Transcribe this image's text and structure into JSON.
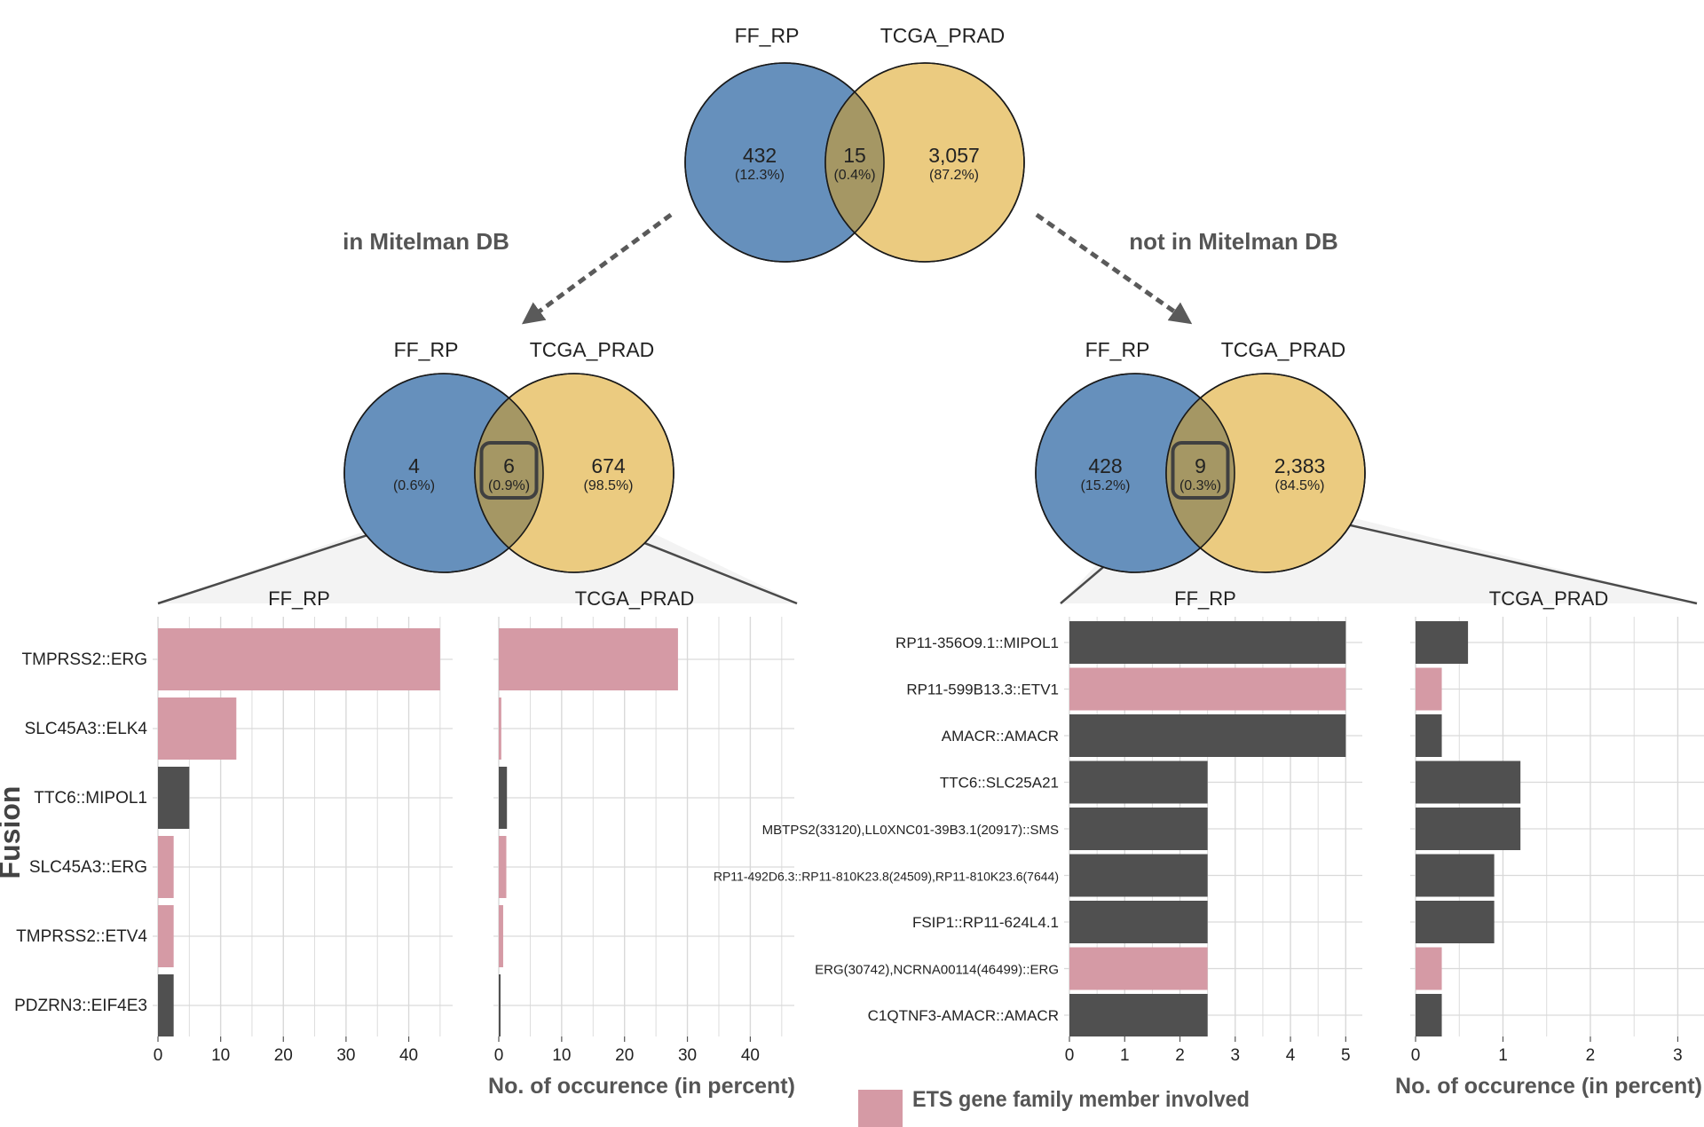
{
  "colors": {
    "blue": "#6690bc",
    "gold": "#ebcb80",
    "overlap": "#a59764",
    "pink": "#d59aa5",
    "dark": "#505050",
    "grid": "#d9d9d9",
    "text": "#222222",
    "arrow": "#5a5a5a"
  },
  "arrows": {
    "left_label": "in Mitelman DB",
    "right_label": "not in Mitelman DB"
  },
  "venns": {
    "top": {
      "left_title": "FF_RP",
      "right_title": "TCGA_PRAD",
      "left_count": "432",
      "left_pct": "(12.3%)",
      "mid_count": "15",
      "mid_pct": "(0.4%)",
      "right_count": "3,057",
      "right_pct": "(87.2%)"
    },
    "left": {
      "left_title": "FF_RP",
      "right_title": "TCGA_PRAD",
      "left_count": "4",
      "left_pct": "(0.6%)",
      "mid_count": "6",
      "mid_pct": "(0.9%)",
      "right_count": "674",
      "right_pct": "(98.5%)"
    },
    "right": {
      "left_title": "FF_RP",
      "right_title": "TCGA_PRAD",
      "left_count": "428",
      "left_pct": "(15.2%)",
      "mid_count": "9",
      "mid_pct": "(0.3%)",
      "right_count": "2,383",
      "right_pct": "(84.5%)"
    }
  },
  "y_axis_title": "Fusion",
  "legend": {
    "label": "ETS gene family member involved",
    "color": "#d59aa5"
  },
  "chart_data": [
    {
      "type": "bar",
      "orientation": "horizontal",
      "title": "FF_RP",
      "categories": [
        "TMPRSS2::ERG",
        "SLC45A3::ELK4",
        "TTC6::MIPOL1",
        "SLC45A3::ERG",
        "TMPRSS2::ETV4",
        "PDZRN3::EIF4E3"
      ],
      "values": [
        45,
        12.5,
        5,
        2.5,
        2.5,
        2.5
      ],
      "ets": [
        true,
        true,
        false,
        true,
        true,
        false
      ],
      "xlim": [
        0,
        47
      ],
      "xticks": [
        0,
        10,
        20,
        30,
        40
      ],
      "xlabel": "",
      "grid": true
    },
    {
      "type": "bar",
      "orientation": "horizontal",
      "title": "TCGA_PRAD",
      "categories": [
        "TMPRSS2::ERG",
        "SLC45A3::ELK4",
        "TTC6::MIPOL1",
        "SLC45A3::ERG",
        "TMPRSS2::ETV4",
        "PDZRN3::EIF4E3"
      ],
      "values": [
        28.5,
        0.4,
        1.3,
        1.2,
        0.7,
        0.2
      ],
      "ets": [
        true,
        true,
        false,
        true,
        true,
        false
      ],
      "xlim": [
        0,
        47
      ],
      "xticks": [
        0,
        10,
        20,
        30,
        40
      ],
      "xlabel": "No. of occurence (in percent)",
      "grid": true
    },
    {
      "type": "bar",
      "orientation": "horizontal",
      "title": "FF_RP",
      "categories": [
        "RP11-356O9.1::MIPOL1",
        "RP11-599B13.3::ETV1",
        "AMACR::AMACR",
        "TTC6::SLC25A21",
        "MBTPS2(33120),LL0XNC01-39B3.1(20917)::SMS",
        "RP11-492D6.3::RP11-810K23.8(24509),RP11-810K23.6(7644)",
        "FSIP1::RP11-624L4.1",
        "ERG(30742),NCRNA00114(46499)::ERG",
        "C1QTNF3-AMACR::AMACR"
      ],
      "values": [
        5,
        5,
        5,
        2.5,
        2.5,
        2.5,
        2.5,
        2.5,
        2.5
      ],
      "ets": [
        false,
        true,
        false,
        false,
        false,
        false,
        false,
        true,
        false
      ],
      "xlim": [
        0,
        5.3
      ],
      "xticks": [
        0,
        1,
        2,
        3,
        4,
        5
      ],
      "xlabel": "",
      "grid": true
    },
    {
      "type": "bar",
      "orientation": "horizontal",
      "title": "TCGA_PRAD",
      "categories": [
        "RP11-356O9.1::MIPOL1",
        "RP11-599B13.3::ETV1",
        "AMACR::AMACR",
        "TTC6::SLC25A21",
        "MBTPS2(33120),LL0XNC01-39B3.1(20917)::SMS",
        "RP11-492D6.3::RP11-810K23.8(24509),RP11-810K23.6(7644)",
        "FSIP1::RP11-624L4.1",
        "ERG(30742),NCRNA00114(46499)::ERG",
        "C1QTNF3-AMACR::AMACR"
      ],
      "values": [
        0.6,
        0.3,
        0.3,
        1.2,
        1.2,
        0.9,
        0.9,
        0.3,
        0.3
      ],
      "ets": [
        false,
        true,
        false,
        false,
        false,
        false,
        false,
        true,
        false
      ],
      "xlim": [
        0,
        3.3
      ],
      "xticks": [
        0,
        1,
        2,
        3
      ],
      "xlabel": "No. of occurence (in percent)",
      "grid": true
    }
  ]
}
